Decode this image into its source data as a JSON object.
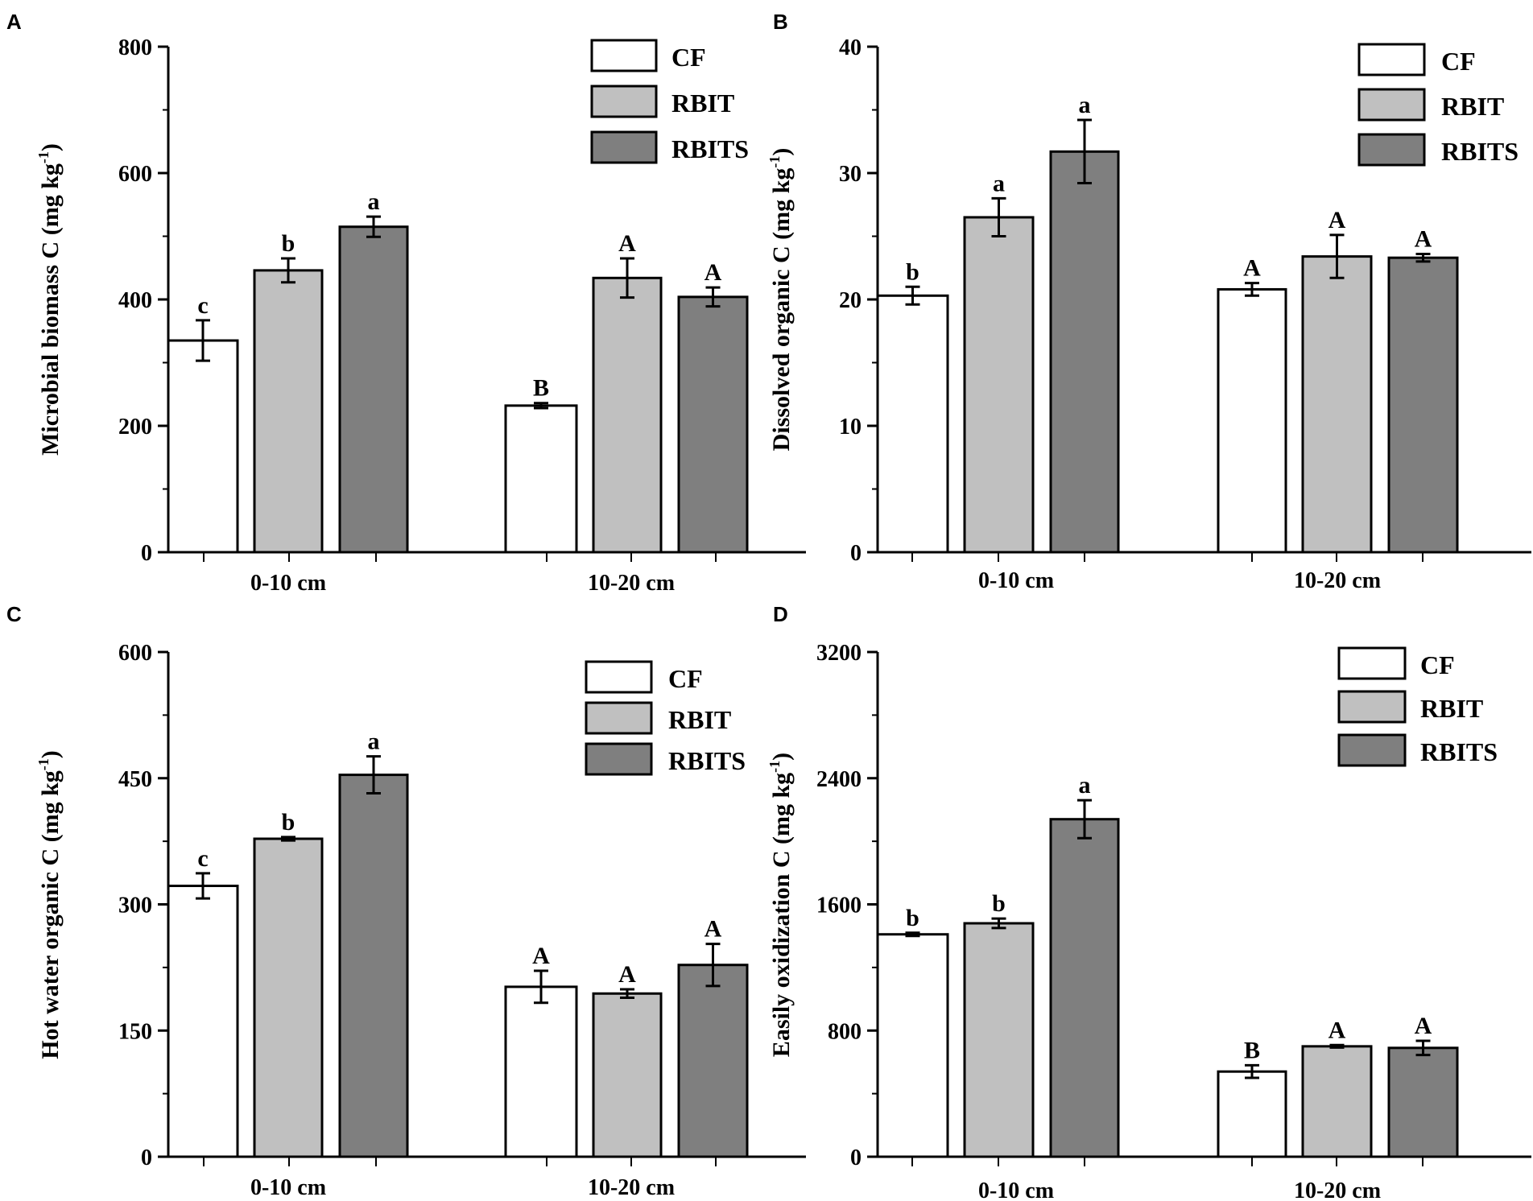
{
  "figure": {
    "colors": {
      "CF": "#ffffff",
      "RBIT": "#c0c0c0",
      "RBITS": "#7f7f7f",
      "ink": "#000000"
    },
    "legend_labels": [
      "CF",
      "RBIT",
      "RBITS"
    ]
  },
  "chart_data": [
    {
      "panel": "A",
      "type": "bar",
      "ylabel": "Microbial biomass C (mg kg",
      "ylabel_sup": "-1",
      "ylabel_close": ")",
      "ylim": [
        0,
        800
      ],
      "yticks": [
        0,
        200,
        400,
        600,
        800
      ],
      "categories": [
        "0-10 cm",
        "10-20 cm"
      ],
      "series": [
        {
          "name": "CF",
          "values": [
            335,
            232
          ],
          "errors": [
            32,
            4
          ],
          "letters": [
            "c",
            "B"
          ]
        },
        {
          "name": "RBIT",
          "values": [
            446,
            434
          ],
          "errors": [
            19,
            31
          ],
          "letters": [
            "b",
            "A"
          ]
        },
        {
          "name": "RBITS",
          "values": [
            515,
            404
          ],
          "errors": [
            16,
            15
          ],
          "letters": [
            "a",
            "A"
          ]
        }
      ],
      "legend": "top-right"
    },
    {
      "panel": "B",
      "type": "bar",
      "ylabel": "Dissolved organic C (mg kg",
      "ylabel_sup": "-1",
      "ylabel_close": ")",
      "ylim": [
        0,
        40
      ],
      "yticks": [
        0,
        10,
        20,
        30,
        40
      ],
      "categories": [
        "0-10 cm",
        "10-20 cm"
      ],
      "series": [
        {
          "name": "CF",
          "values": [
            20.3,
            20.8
          ],
          "errors": [
            0.7,
            0.5
          ],
          "letters": [
            "b",
            "A"
          ]
        },
        {
          "name": "RBIT",
          "values": [
            26.5,
            23.4
          ],
          "errors": [
            1.5,
            1.7
          ],
          "letters": [
            "a",
            "A"
          ]
        },
        {
          "name": "RBITS",
          "values": [
            31.7,
            23.3
          ],
          "errors": [
            2.5,
            0.3
          ],
          "letters": [
            "a",
            "A"
          ]
        }
      ],
      "legend": "top-right"
    },
    {
      "panel": "C",
      "type": "bar",
      "ylabel": "Hot water organic C (mg kg",
      "ylabel_sup": "-1",
      "ylabel_close": ")",
      "ylim": [
        0,
        600
      ],
      "yticks": [
        0,
        150,
        300,
        450,
        600
      ],
      "categories": [
        "0-10 cm",
        "10-20 cm"
      ],
      "series": [
        {
          "name": "CF",
          "values": [
            322,
            202
          ],
          "errors": [
            15,
            19
          ],
          "letters": [
            "c",
            "A"
          ]
        },
        {
          "name": "RBIT",
          "values": [
            378,
            194
          ],
          "errors": [
            2,
            5
          ],
          "letters": [
            "b",
            "A"
          ]
        },
        {
          "name": "RBITS",
          "values": [
            454,
            228
          ],
          "errors": [
            22,
            25
          ],
          "letters": [
            "a",
            "A"
          ]
        }
      ],
      "legend": "top-right"
    },
    {
      "panel": "D",
      "type": "bar",
      "ylabel": "Easily oxidization C (mg kg",
      "ylabel_sup": "-1",
      "ylabel_close": ")",
      "ylim": [
        0,
        3200
      ],
      "yticks": [
        0,
        800,
        1600,
        2400,
        3200
      ],
      "categories": [
        "0-10 cm",
        "10-20 cm"
      ],
      "series": [
        {
          "name": "CF",
          "values": [
            1410,
            540
          ],
          "errors": [
            10,
            40
          ],
          "letters": [
            "b",
            "B"
          ]
        },
        {
          "name": "RBIT",
          "values": [
            1480,
            700
          ],
          "errors": [
            30,
            8
          ],
          "letters": [
            "b",
            "A"
          ]
        },
        {
          "name": "RBITS",
          "values": [
            2140,
            690
          ],
          "errors": [
            120,
            45
          ],
          "letters": [
            "a",
            "A"
          ]
        }
      ],
      "legend": "top-right"
    }
  ]
}
